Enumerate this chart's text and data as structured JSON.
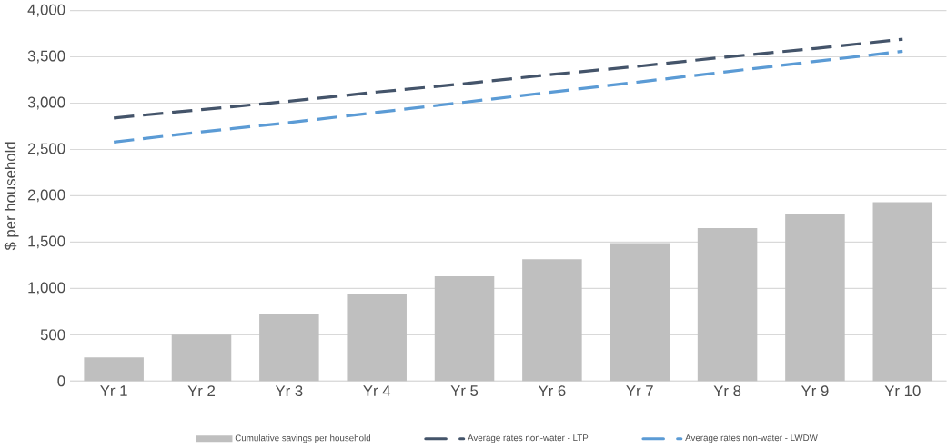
{
  "chart_data": {
    "type": "bar",
    "ylabel": "$ per household",
    "categories": [
      "Yr 1",
      "Yr 2",
      "Yr 3",
      "Yr 4",
      "Yr 5",
      "Yr 6",
      "Yr 7",
      "Yr 8",
      "Yr 9",
      "Yr 10"
    ],
    "series": [
      {
        "name": "Cumulative savings per household",
        "color": "#bfbfbf",
        "values": [
          255,
          500,
          720,
          935,
          1130,
          1315,
          1490,
          1650,
          1800,
          1930
        ]
      },
      {
        "name": "Average rates non-water - LTP",
        "type": "line",
        "line_style": "dashed",
        "color": "#44546a",
        "values": [
          2840,
          2930,
          3020,
          3120,
          3210,
          3310,
          3400,
          3500,
          3590,
          3690
        ]
      },
      {
        "name": "Average rates non-water - LWDW",
        "type": "line",
        "line_style": "dashed",
        "color": "#5b9bd5",
        "values": [
          2580,
          2690,
          2790,
          2900,
          3010,
          3120,
          3230,
          3340,
          3450,
          3560
        ]
      }
    ],
    "ylim": [
      0,
      4000
    ],
    "yticks": [
      {
        "value": 0,
        "label": "0"
      },
      {
        "value": 500,
        "label": "500"
      },
      {
        "value": 1000,
        "label": "1,000"
      },
      {
        "value": 1500,
        "label": "1,500"
      },
      {
        "value": 2000,
        "label": "2,000"
      },
      {
        "value": 2500,
        "label": "2,500"
      },
      {
        "value": 3000,
        "label": "3,000"
      },
      {
        "value": 3500,
        "label": "3,500"
      },
      {
        "value": 4000,
        "label": "4,000"
      }
    ],
    "grid": "y",
    "legend": "bottom",
    "marker": "none"
  }
}
